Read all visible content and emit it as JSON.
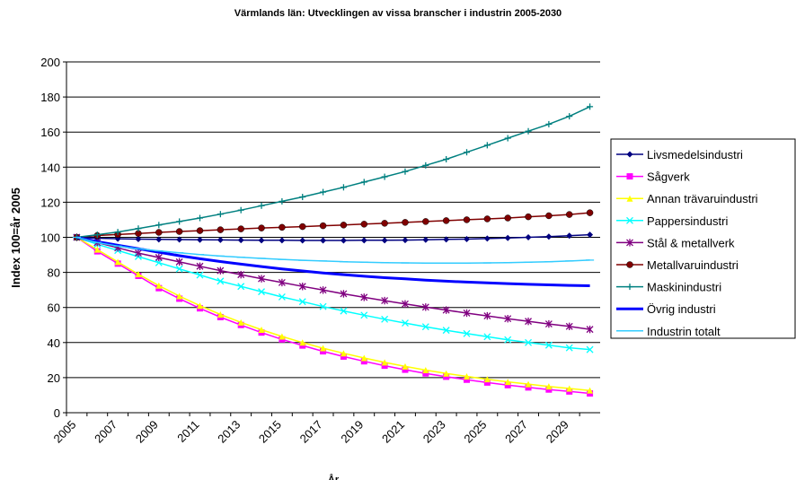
{
  "chart_data": {
    "type": "line",
    "title": "Värmlands län: Utvecklingen av vissa branscher i industrin 2005-2030",
    "x_label": "År",
    "y_label": "Index 100=år 2005",
    "categories": [
      "2005",
      null,
      "2007",
      null,
      "2009",
      null,
      "2011",
      null,
      "2013",
      null,
      "2015",
      null,
      "2017",
      null,
      "2019",
      null,
      "2021",
      null,
      "2023",
      null,
      "2025",
      null,
      "2027",
      null,
      "2029",
      null
    ],
    "ylim": [
      0,
      200
    ],
    "yticks": [
      0,
      20,
      40,
      60,
      80,
      100,
      120,
      140,
      160,
      180,
      200
    ],
    "grid": true,
    "legend": "right",
    "series": [
      {
        "name": "Livsmedelsindustri",
        "color": "#000080",
        "marker": "diamond",
        "values": [
          100,
          99.5,
          99.2,
          99,
          98.8,
          98.7,
          98.6,
          98.5,
          98.4,
          98.3,
          98.3,
          98.2,
          98.2,
          98.2,
          98.3,
          98.3,
          98.4,
          98.6,
          98.8,
          99,
          99.3,
          99.6,
          100,
          100.4,
          100.9,
          101.5
        ]
      },
      {
        "name": "Sågverk",
        "color": "#ff00ff",
        "marker": "square",
        "values": [
          100,
          92,
          85,
          78,
          71,
          65,
          59.5,
          54.5,
          50,
          45.7,
          41.8,
          38.3,
          35,
          32,
          29.3,
          26.8,
          24.5,
          22.4,
          20.5,
          18.8,
          17.2,
          15.7,
          14.4,
          13.2,
          12.1,
          11
        ]
      },
      {
        "name": "Annan trävaruindustri",
        "color": "#ffff00",
        "marker": "triangle",
        "values": [
          100,
          93,
          86,
          79,
          72.5,
          66.5,
          61,
          56,
          51.5,
          47.3,
          43.5,
          40,
          36.8,
          33.9,
          31.2,
          28.7,
          26.4,
          24.3,
          22.4,
          20.7,
          19.1,
          17.6,
          16.3,
          15,
          13.8,
          12.7
        ]
      },
      {
        "name": "Pappersindustri",
        "color": "#00ffff",
        "marker": "x",
        "values": [
          100,
          96,
          92.5,
          89,
          85.5,
          82,
          78.5,
          75,
          72,
          69,
          66,
          63.3,
          60.5,
          58,
          55.6,
          53.3,
          51.1,
          49,
          47,
          45.1,
          43.3,
          41.6,
          40,
          38.5,
          37,
          36
        ]
      },
      {
        "name": "Stål & metallverk",
        "color": "#800080",
        "marker": "star",
        "values": [
          100,
          97,
          94,
          91,
          88.5,
          86,
          83.5,
          81,
          78.7,
          76.4,
          74.2,
          72,
          69.9,
          67.8,
          65.8,
          63.9,
          62,
          60.2,
          58.5,
          56.8,
          55.2,
          53.6,
          52.1,
          50.6,
          49.2,
          47.5
        ]
      },
      {
        "name": "Metallvaruindustri",
        "color": "#800000",
        "marker": "circle",
        "values": [
          100,
          101,
          101.6,
          102.2,
          102.8,
          103.3,
          103.8,
          104.3,
          104.8,
          105.3,
          105.7,
          106.1,
          106.6,
          107,
          107.5,
          108,
          108.5,
          109,
          109.5,
          110,
          110.5,
          111,
          111.7,
          112.3,
          113,
          114
        ]
      },
      {
        "name": "Maskinindustri",
        "color": "#008080",
        "marker": "plus",
        "values": [
          100,
          101.5,
          103,
          105,
          107,
          109,
          111,
          113.2,
          115.5,
          118,
          120.5,
          123,
          125.8,
          128.5,
          131.5,
          134.5,
          137.5,
          141,
          144.5,
          148.5,
          152.5,
          156.5,
          160.5,
          164.5,
          169,
          174.5
        ]
      },
      {
        "name": "Övrig industri",
        "color": "#0000ff",
        "marker": "none",
        "width": 3,
        "values": [
          100,
          97.5,
          95.5,
          93.5,
          91.5,
          89.5,
          87.8,
          86.2,
          84.7,
          83.3,
          82,
          80.8,
          79.7,
          78.7,
          77.8,
          77,
          76.3,
          75.6,
          75,
          74.5,
          74,
          73.6,
          73.2,
          72.9,
          72.6,
          72.4
        ]
      },
      {
        "name": "Industrin totalt",
        "color": "#33ccff",
        "marker": "dash",
        "values": [
          100,
          97,
          95,
          93.5,
          92.3,
          91.2,
          90.2,
          89.3,
          88.6,
          88,
          87.4,
          86.9,
          86.5,
          86.1,
          85.8,
          85.6,
          85.4,
          85.3,
          85.3,
          85.3,
          85.4,
          85.6,
          85.8,
          86.1,
          86.5,
          87
        ]
      }
    ]
  }
}
